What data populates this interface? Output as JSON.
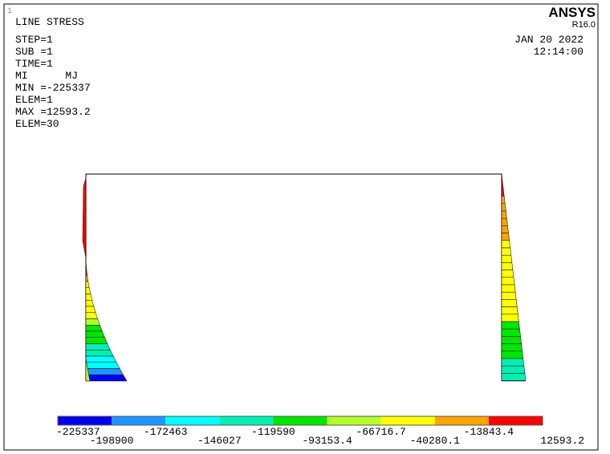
{
  "corner": "1",
  "title": "LINE STRESS",
  "info": [
    "STEP=1",
    "SUB =1",
    "TIME=1",
    "MI      MJ",
    "MIN =-225337",
    "ELEM=1",
    "MAX =12593.2",
    "ELEM=30"
  ],
  "logo": "ANSYS",
  "version": "R16.0",
  "date": "JAN 20 2022",
  "time": "12:14:00",
  "legend": {
    "colors": [
      "#0000f0",
      "#1e96ff",
      "#00ffff",
      "#00f0b4",
      "#00e600",
      "#b4ff28",
      "#ffff00",
      "#ffa500",
      "#ff0000"
    ],
    "labels": [
      "-225337",
      "-198900",
      "-172463",
      "-146027",
      "-119590",
      "-93153.4",
      "-66716.7",
      "-40280.1",
      "-13843.4",
      "12593.2"
    ]
  }
}
